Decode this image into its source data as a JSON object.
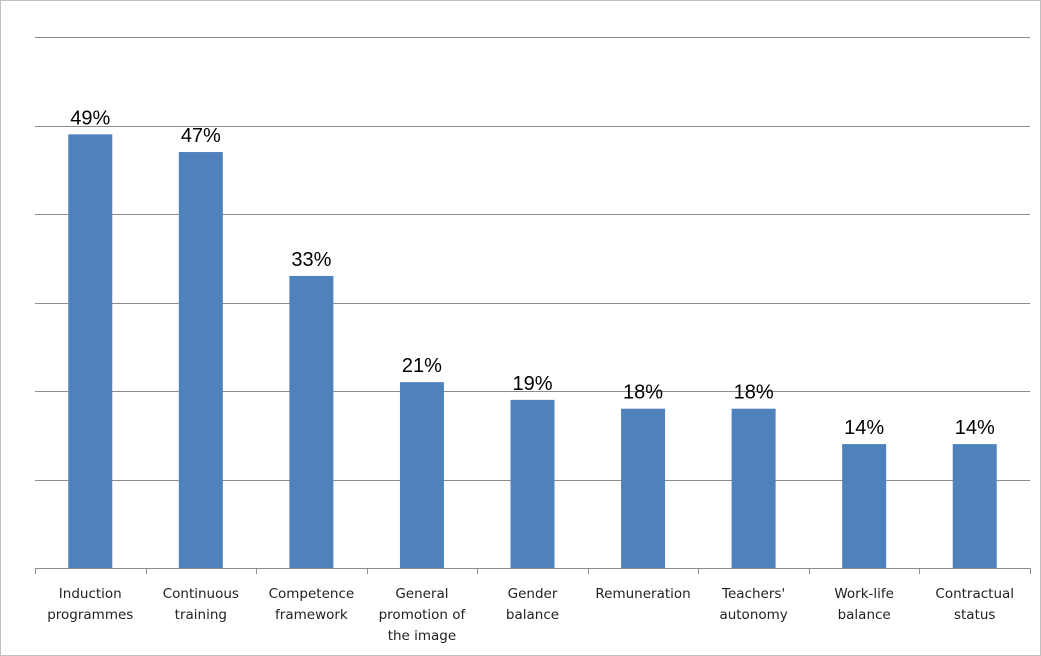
{
  "chart_data": {
    "type": "bar",
    "title": "",
    "xlabel": "",
    "ylabel": "",
    "categories": [
      [
        "Induction",
        "programmes"
      ],
      [
        "Continuous",
        "training"
      ],
      [
        "Competence",
        "framework"
      ],
      [
        "General",
        "promotion of",
        "the image"
      ],
      [
        "Gender",
        "balance"
      ],
      [
        "Remuneration"
      ],
      [
        "Teachers'",
        "autonomy"
      ],
      [
        "Work-life",
        "balance"
      ],
      [
        "Contractual",
        "status"
      ]
    ],
    "values": [
      49,
      47,
      33,
      21,
      19,
      18,
      18,
      14,
      14
    ],
    "value_labels": [
      "49%",
      "47%",
      "33%",
      "21%",
      "19%",
      "18%",
      "18%",
      "14%",
      "14%"
    ],
    "ylim": [
      0,
      60
    ],
    "gridlines": [
      0,
      10,
      20,
      30,
      40,
      50,
      60
    ],
    "grid": true,
    "legend": "none",
    "bar_color": "#4f81bd",
    "grid_color": "#8c8c8c"
  }
}
